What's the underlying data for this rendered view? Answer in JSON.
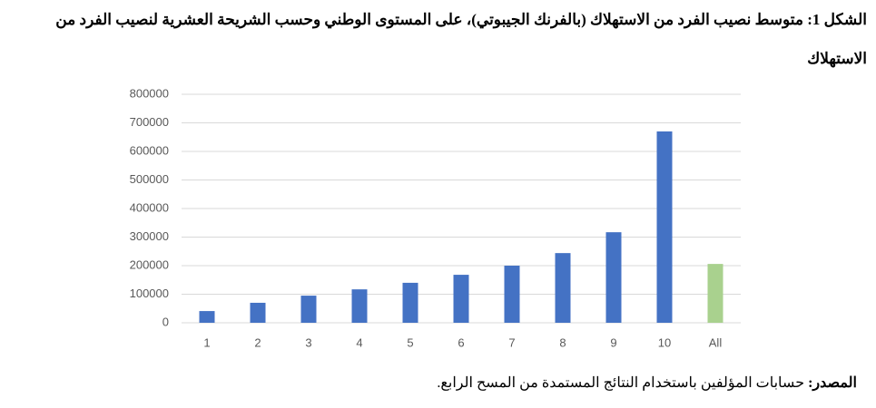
{
  "chart_data": {
    "type": "bar",
    "title": "الشكل 1: متوسط نصيب الفرد من الاستهلاك (بالفرنك الجيبوتي)، على المستوى الوطني وحسب الشريحة العشرية لنصيب الفرد من الاستهلاك",
    "categories": [
      "1",
      "2",
      "3",
      "4",
      "5",
      "6",
      "7",
      "8",
      "9",
      "10",
      "All"
    ],
    "values": [
      41000,
      70000,
      95000,
      117000,
      140000,
      168000,
      200000,
      244000,
      317000,
      670000,
      206000
    ],
    "colors": [
      "#4472c4",
      "#4472c4",
      "#4472c4",
      "#4472c4",
      "#4472c4",
      "#4472c4",
      "#4472c4",
      "#4472c4",
      "#4472c4",
      "#4472c4",
      "#a9d18e"
    ],
    "ylim": [
      0,
      800000
    ],
    "yticks": [
      0,
      100000,
      200000,
      300000,
      400000,
      500000,
      600000,
      700000,
      800000
    ],
    "grid": true,
    "source_label": "المصدر:",
    "source_text": "حسابات المؤلفين باستخدام النتائج المستمدة من المسح الرابع."
  }
}
